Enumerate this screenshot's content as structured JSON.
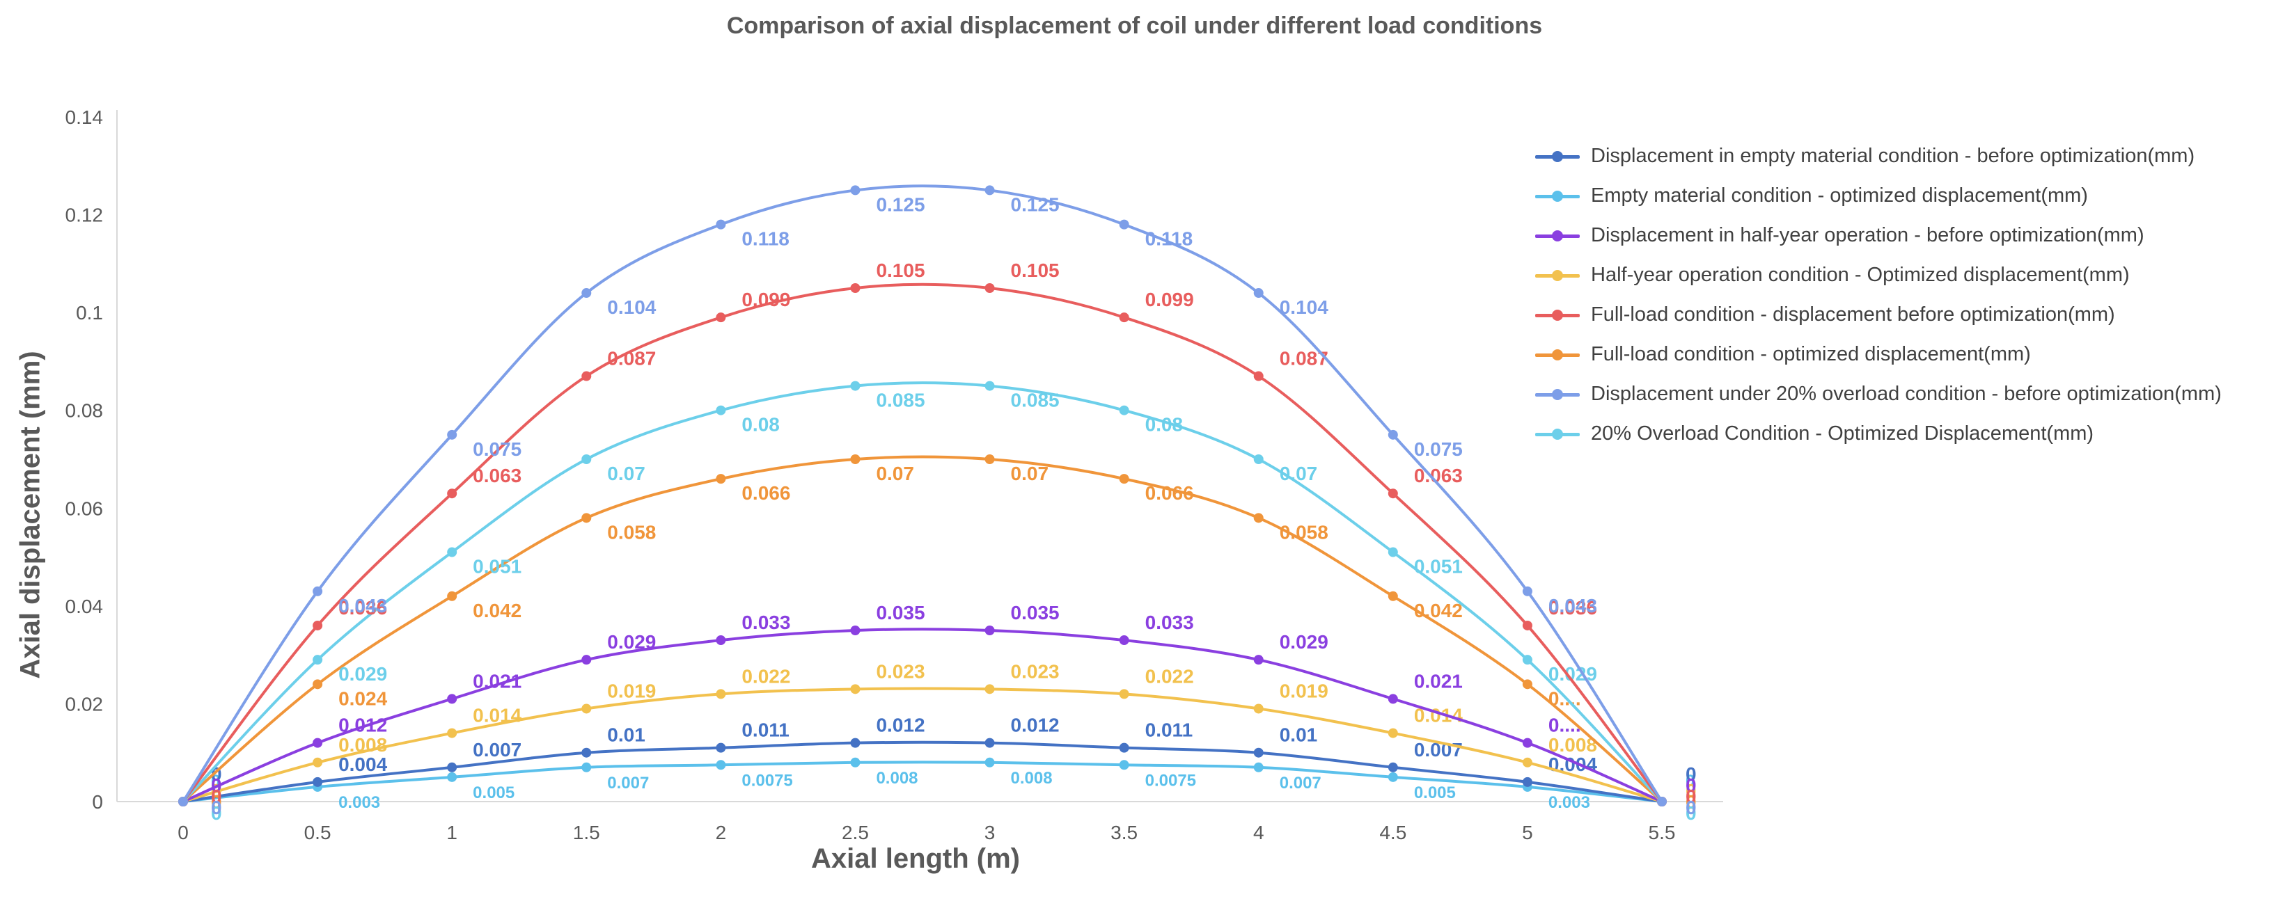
{
  "chart_data": {
    "type": "line",
    "title": "Comparison of axial displacement of coil under different load conditions",
    "xlabel": "Axial length (m)",
    "ylabel": "Axial displacement (mm)",
    "xlim": [
      0,
      5.5
    ],
    "ylim": [
      0,
      0.14
    ],
    "x_ticks": [
      "0",
      "0.5",
      "1",
      "1.5",
      "2",
      "2.5",
      "3",
      "3.5",
      "4",
      "4.5",
      "5",
      "5.5"
    ],
    "y_ticks": [
      "0",
      "0.02",
      "0.04",
      "0.06",
      "0.08",
      "0.1",
      "0.12",
      "0.14"
    ],
    "grid": false,
    "smooth": true,
    "legend_position": "top-right",
    "x": [
      0,
      0.5,
      1,
      1.5,
      2,
      2.5,
      3,
      3.5,
      4,
      4.5,
      5,
      5.5
    ],
    "series": [
      {
        "name": "Displacement in empty material condition - before optimization(mm)",
        "color": "#4472C4",
        "values": [
          0,
          0.004,
          0.007,
          0.01,
          0.011,
          0.012,
          0.012,
          0.011,
          0.01,
          0.007,
          0.004,
          0
        ],
        "data_labels": [
          "0",
          "0.004",
          "0.007",
          "0.01",
          "0.011",
          "0.012",
          "0.012",
          "0.011",
          "0.01",
          "0.007",
          "0.004",
          "0"
        ]
      },
      {
        "name": "Empty material condition - optimized displacement(mm)",
        "color": "#5BC0EB",
        "values": [
          0,
          0.003,
          0.005,
          0.007,
          0.0075,
          0.008,
          0.008,
          0.0075,
          0.007,
          0.005,
          0.003,
          0
        ],
        "data_labels": [
          "0",
          "0.003",
          "0.005",
          "0.007",
          "0.0075",
          "0.008",
          "0.008",
          "0.0075",
          "0.007",
          "0.005",
          "0.003",
          "0"
        ]
      },
      {
        "name": "Displacement in half-year operation - before optimization(mm)",
        "color": "#8A3FE0",
        "values": [
          0,
          0.012,
          0.021,
          0.029,
          0.033,
          0.035,
          0.035,
          0.033,
          0.029,
          0.021,
          0.012,
          0
        ],
        "data_labels": [
          "0",
          "0.012",
          "0.021",
          "0.029",
          "0.033",
          "0.035",
          "0.035",
          "0.033",
          "0.029",
          "0.021",
          "0....",
          "0"
        ]
      },
      {
        "name": "Half-year operation condition - Optimized displacement(mm)",
        "color": "#F2C14E",
        "values": [
          0,
          0.008,
          0.014,
          0.019,
          0.022,
          0.023,
          0.023,
          0.022,
          0.019,
          0.014,
          0.008,
          0
        ],
        "data_labels": [
          "0",
          "0.008",
          "0.014",
          "0.019",
          "0.022",
          "0.023",
          "0.023",
          "0.022",
          "0.019",
          "0.014",
          "0.008",
          "0"
        ]
      },
      {
        "name": "Full-load condition - displacement before optimization(mm)",
        "color": "#E85D5D",
        "values": [
          0,
          0.036,
          0.063,
          0.087,
          0.099,
          0.105,
          0.105,
          0.099,
          0.087,
          0.063,
          0.036,
          0
        ],
        "data_labels": [
          "0",
          "0.036",
          "0.063",
          "0.087",
          "0.099",
          "0.105",
          "0.105",
          "0.099",
          "0.087",
          "0.063",
          "0.036",
          "0"
        ]
      },
      {
        "name": "Full-load condition - optimized displacement(mm)",
        "color": "#F0953A",
        "values": [
          0,
          0.024,
          0.042,
          0.058,
          0.066,
          0.07,
          0.07,
          0.066,
          0.058,
          0.042,
          0.024,
          0
        ],
        "data_labels": [
          "0",
          "0.024",
          "0.042",
          "0.058",
          "0.066",
          "0.07",
          "0.07",
          "0.066",
          "0.058",
          "0.042",
          "0....",
          "0"
        ]
      },
      {
        "name": "Displacement under 20% overload condition - before optimization(mm)",
        "color": "#7D9EE8",
        "values": [
          0,
          0.043,
          0.075,
          0.104,
          0.118,
          0.125,
          0.125,
          0.118,
          0.104,
          0.075,
          0.043,
          0
        ],
        "data_labels": [
          "0",
          "0.043",
          "0.075",
          "0.104",
          "0.118",
          "0.125",
          "0.125",
          "0.118",
          "0.104",
          "0.075",
          "0.043",
          "0"
        ]
      },
      {
        "name": "20% Overload Condition - Optimized Displacement(mm)",
        "color": "#6CCFEA",
        "values": [
          0,
          0.029,
          0.051,
          0.07,
          0.08,
          0.085,
          0.085,
          0.08,
          0.07,
          0.051,
          0.029,
          0
        ],
        "data_labels": [
          "0",
          "0.029",
          "0.051",
          "0.07",
          "0.08",
          "0.085",
          "0.085",
          "0.08",
          "0.07",
          "0.051",
          "0.029",
          "0"
        ]
      }
    ]
  }
}
